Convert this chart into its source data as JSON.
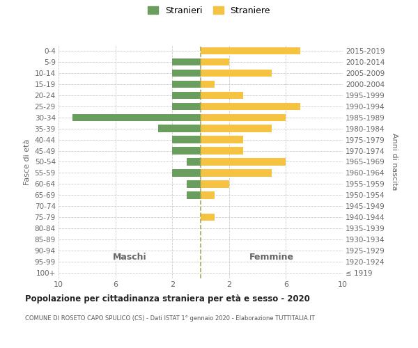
{
  "age_groups": [
    "100+",
    "95-99",
    "90-94",
    "85-89",
    "80-84",
    "75-79",
    "70-74",
    "65-69",
    "60-64",
    "55-59",
    "50-54",
    "45-49",
    "40-44",
    "35-39",
    "30-34",
    "25-29",
    "20-24",
    "15-19",
    "10-14",
    "5-9",
    "0-4"
  ],
  "birth_years": [
    "≤ 1919",
    "1920-1924",
    "1925-1929",
    "1930-1934",
    "1935-1939",
    "1940-1944",
    "1945-1949",
    "1950-1954",
    "1955-1959",
    "1960-1964",
    "1965-1969",
    "1970-1974",
    "1975-1979",
    "1980-1984",
    "1985-1989",
    "1990-1994",
    "1995-1999",
    "2000-2004",
    "2005-2009",
    "2010-2014",
    "2015-2019"
  ],
  "maschi": [
    0,
    0,
    0,
    0,
    0,
    0,
    0,
    1,
    1,
    2,
    1,
    2,
    2,
    3,
    9,
    2,
    2,
    2,
    2,
    2,
    0
  ],
  "femmine": [
    0,
    0,
    0,
    0,
    0,
    1,
    0,
    1,
    2,
    5,
    6,
    3,
    3,
    5,
    6,
    7,
    3,
    1,
    5,
    2,
    7
  ],
  "color_maschi": "#6a9e5e",
  "color_femmine": "#f5c242",
  "title": "Popolazione per cittadinanza straniera per età e sesso - 2020",
  "subtitle": "COMUNE DI ROSETO CAPO SPULICO (CS) - Dati ISTAT 1° gennaio 2020 - Elaborazione TUTTITALIA.IT",
  "xlabel_left": "Maschi",
  "xlabel_right": "Femmine",
  "ylabel_left": "Fasce di età",
  "ylabel_right": "Anni di nascita",
  "legend_maschi": "Stranieri",
  "legend_femmine": "Straniere",
  "xlim": 10,
  "xticks": [
    -10,
    -6,
    -2,
    2,
    6,
    10
  ],
  "background_color": "#ffffff",
  "grid_color": "#cccccc"
}
